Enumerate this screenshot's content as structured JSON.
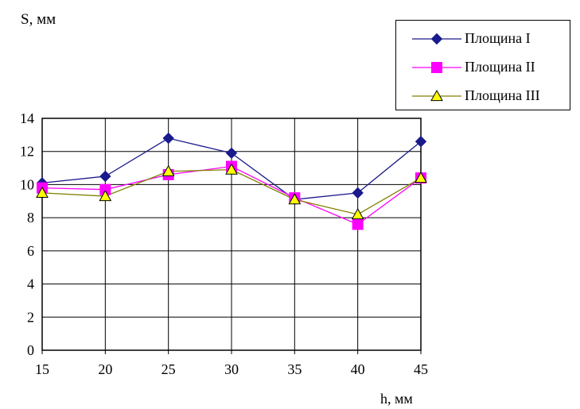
{
  "chart_data": {
    "type": "line",
    "ylabel": "S, мм",
    "xlabel": "h, мм",
    "x": [
      15,
      20,
      25,
      30,
      35,
      40,
      45
    ],
    "xticks": [
      "15",
      "20",
      "25",
      "30",
      "35",
      "40",
      "45"
    ],
    "yticks": [
      "0",
      "2",
      "4",
      "6",
      "8",
      "10",
      "12",
      "14"
    ],
    "ylim": [
      0,
      14
    ],
    "grid": true,
    "legend_position": "top-right",
    "series": [
      {
        "name": "Площина I",
        "values": [
          10.1,
          10.5,
          12.8,
          11.9,
          9.1,
          9.5,
          12.6
        ],
        "color": "#1a1a8c",
        "marker": "diamond"
      },
      {
        "name": "Площина II",
        "values": [
          9.8,
          9.7,
          10.6,
          11.1,
          9.2,
          7.6,
          10.4
        ],
        "color": "#ff00ff",
        "marker": "square"
      },
      {
        "name": "Площина III",
        "values": [
          9.5,
          9.3,
          10.8,
          10.9,
          9.1,
          8.2,
          10.4
        ],
        "color": "#808000",
        "marker": "triangle"
      }
    ]
  }
}
